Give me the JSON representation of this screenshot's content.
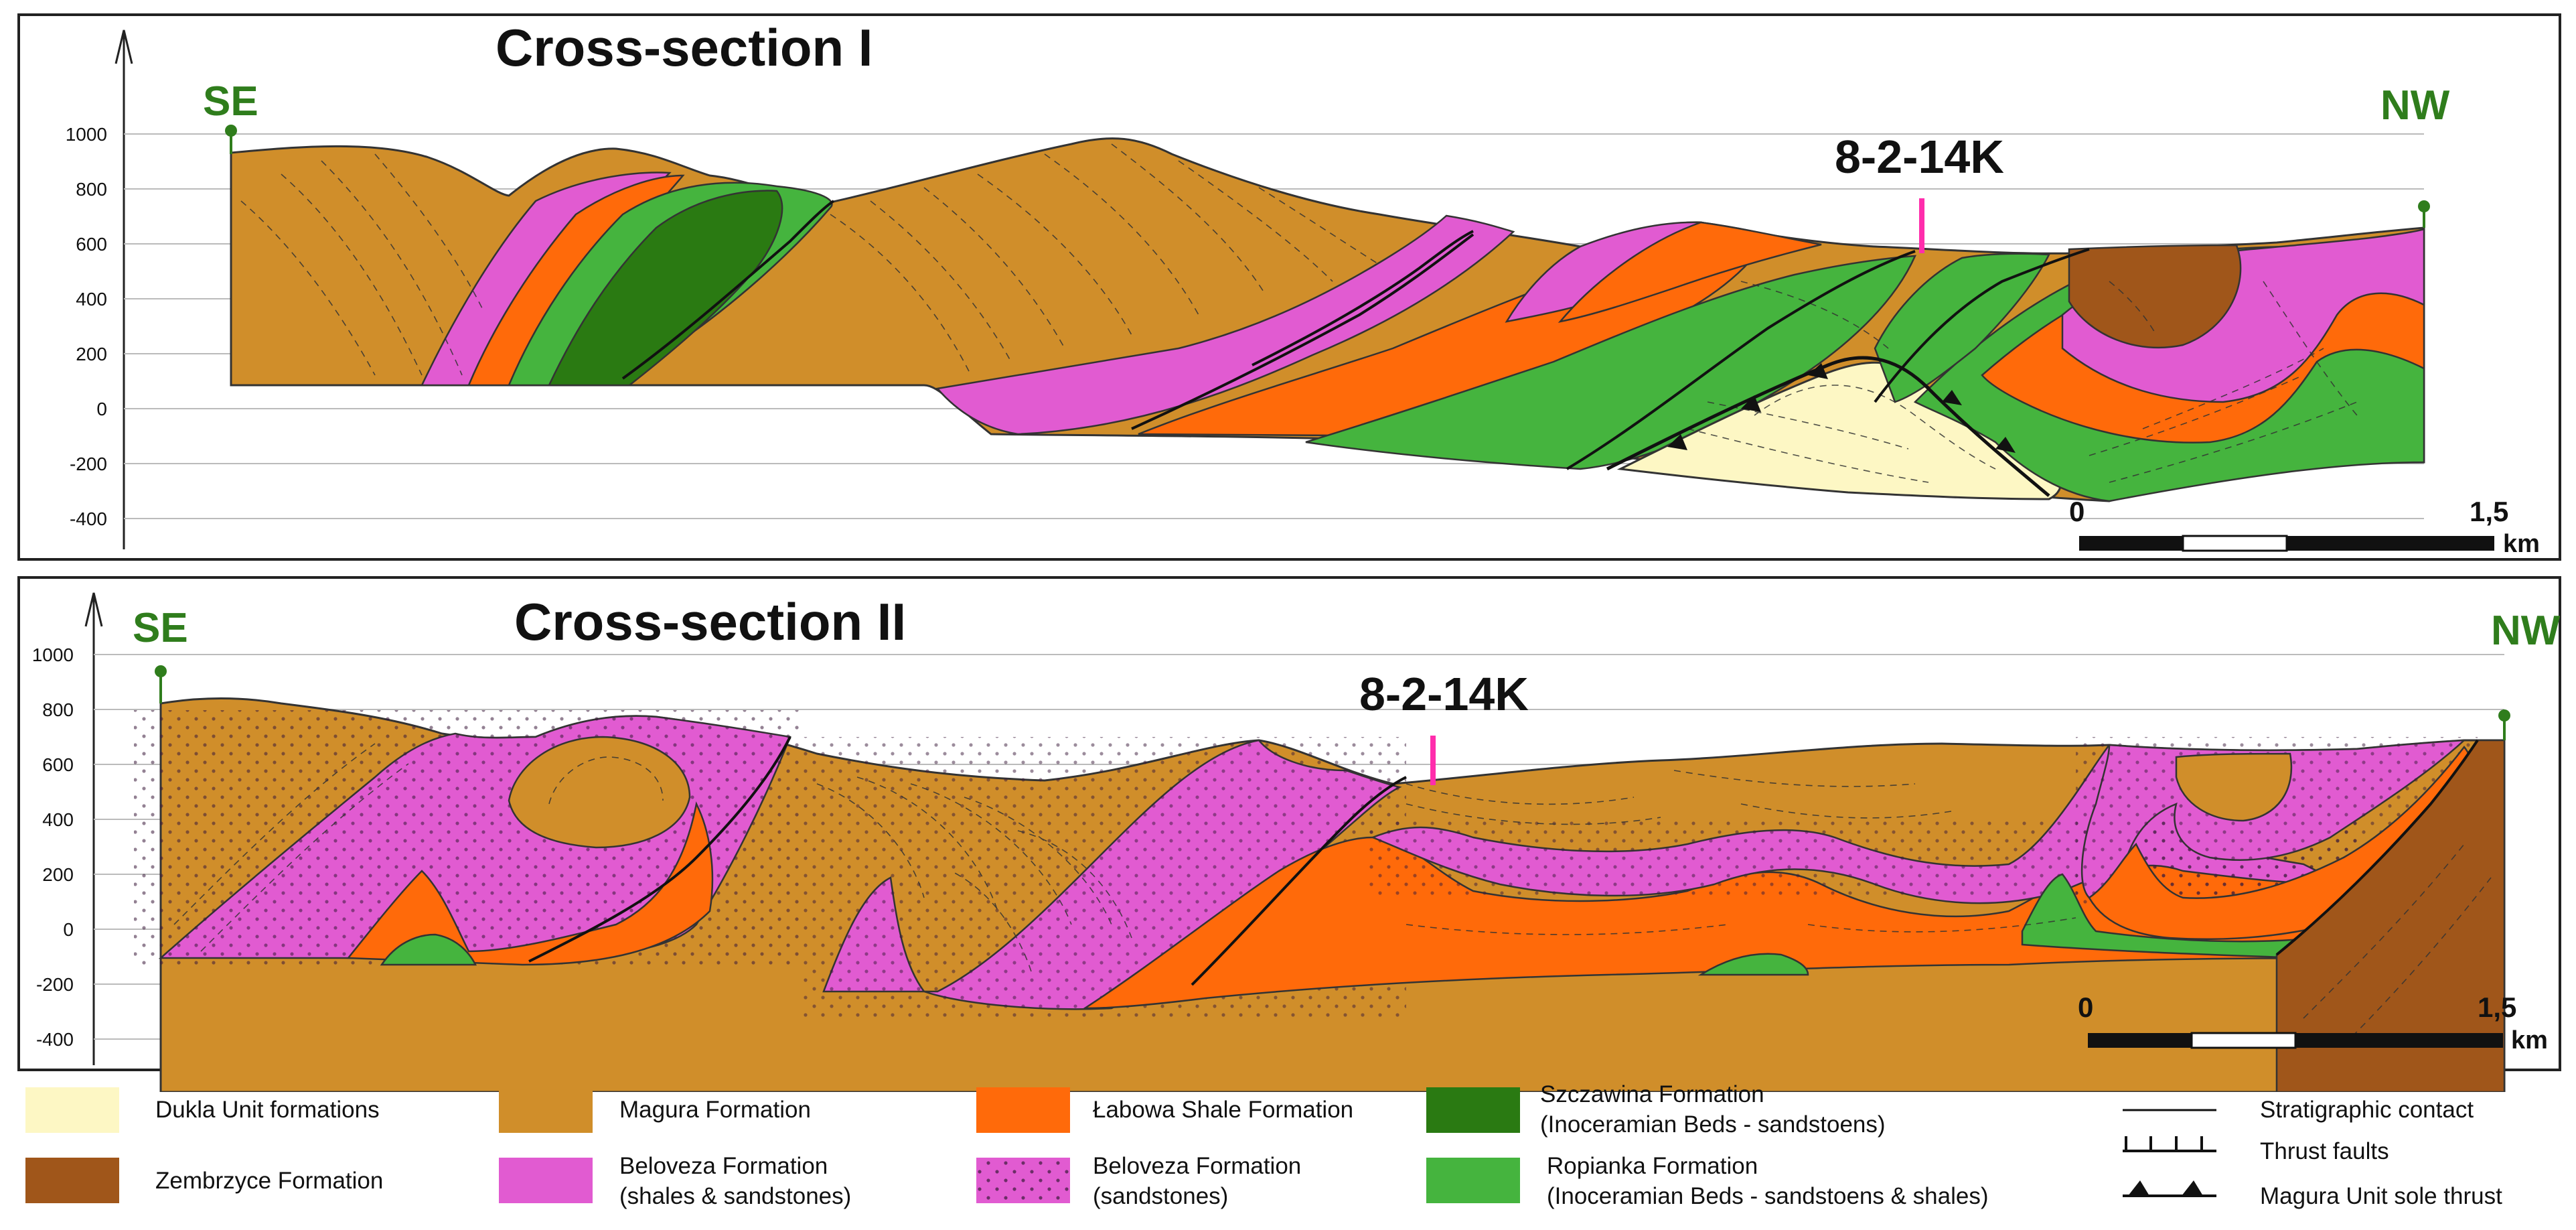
{
  "sections": [
    {
      "title": "Cross-section I",
      "left_direction": "SE",
      "right_direction": "NW",
      "well_label": "8-2-14K",
      "y_ticks": [
        "1000",
        "800",
        "600",
        "400",
        "200",
        "0",
        "-200",
        "-400"
      ],
      "scale_start": "0",
      "scale_end": "1,5",
      "scale_unit": "km"
    },
    {
      "title": "Cross-section II",
      "left_direction": "SE",
      "right_direction": "NW",
      "well_label": "8-2-14K",
      "y_ticks": [
        "1000",
        "800",
        "600",
        "400",
        "200",
        "0",
        "-200",
        "-400"
      ],
      "scale_start": "0",
      "scale_end": "1,5",
      "scale_unit": "km"
    }
  ],
  "legend": {
    "dukla": "Dukla Unit formations",
    "zembrzyce": "Zembrzyce Formation",
    "magura": "Magura Formation",
    "beloveza_shales_1": "Beloveza Formation",
    "beloveza_shales_2": "(shales & sandstones)",
    "labowa": "Łabowa Shale Formation",
    "beloveza_sand_1": "Beloveza Formation",
    "beloveza_sand_2": "(sandstones)",
    "szczawina_1": "Szczawina Formation",
    "szczawina_2": "(Inoceramian Beds - sandstoens)",
    "ropianka_1": "Ropianka Formation",
    "ropianka_2": "(Inoceramian Beds - sandstoens & shales)",
    "strat_contact": "Stratigraphic contact",
    "thrust_faults": "Thrust faults",
    "sole_thrust": "Magura Unit sole thrust"
  },
  "colors": {
    "dukla": "#fdf7c4",
    "zembrzyce": "#a0561a",
    "magura": "#d08e2a",
    "beloveza": "#e15bd1",
    "labowa": "#ff6a0a",
    "szczawina": "#2a7a12",
    "ropianka": "#45b43e",
    "well": "#ff2dac",
    "direction": "#2f7d1c"
  }
}
